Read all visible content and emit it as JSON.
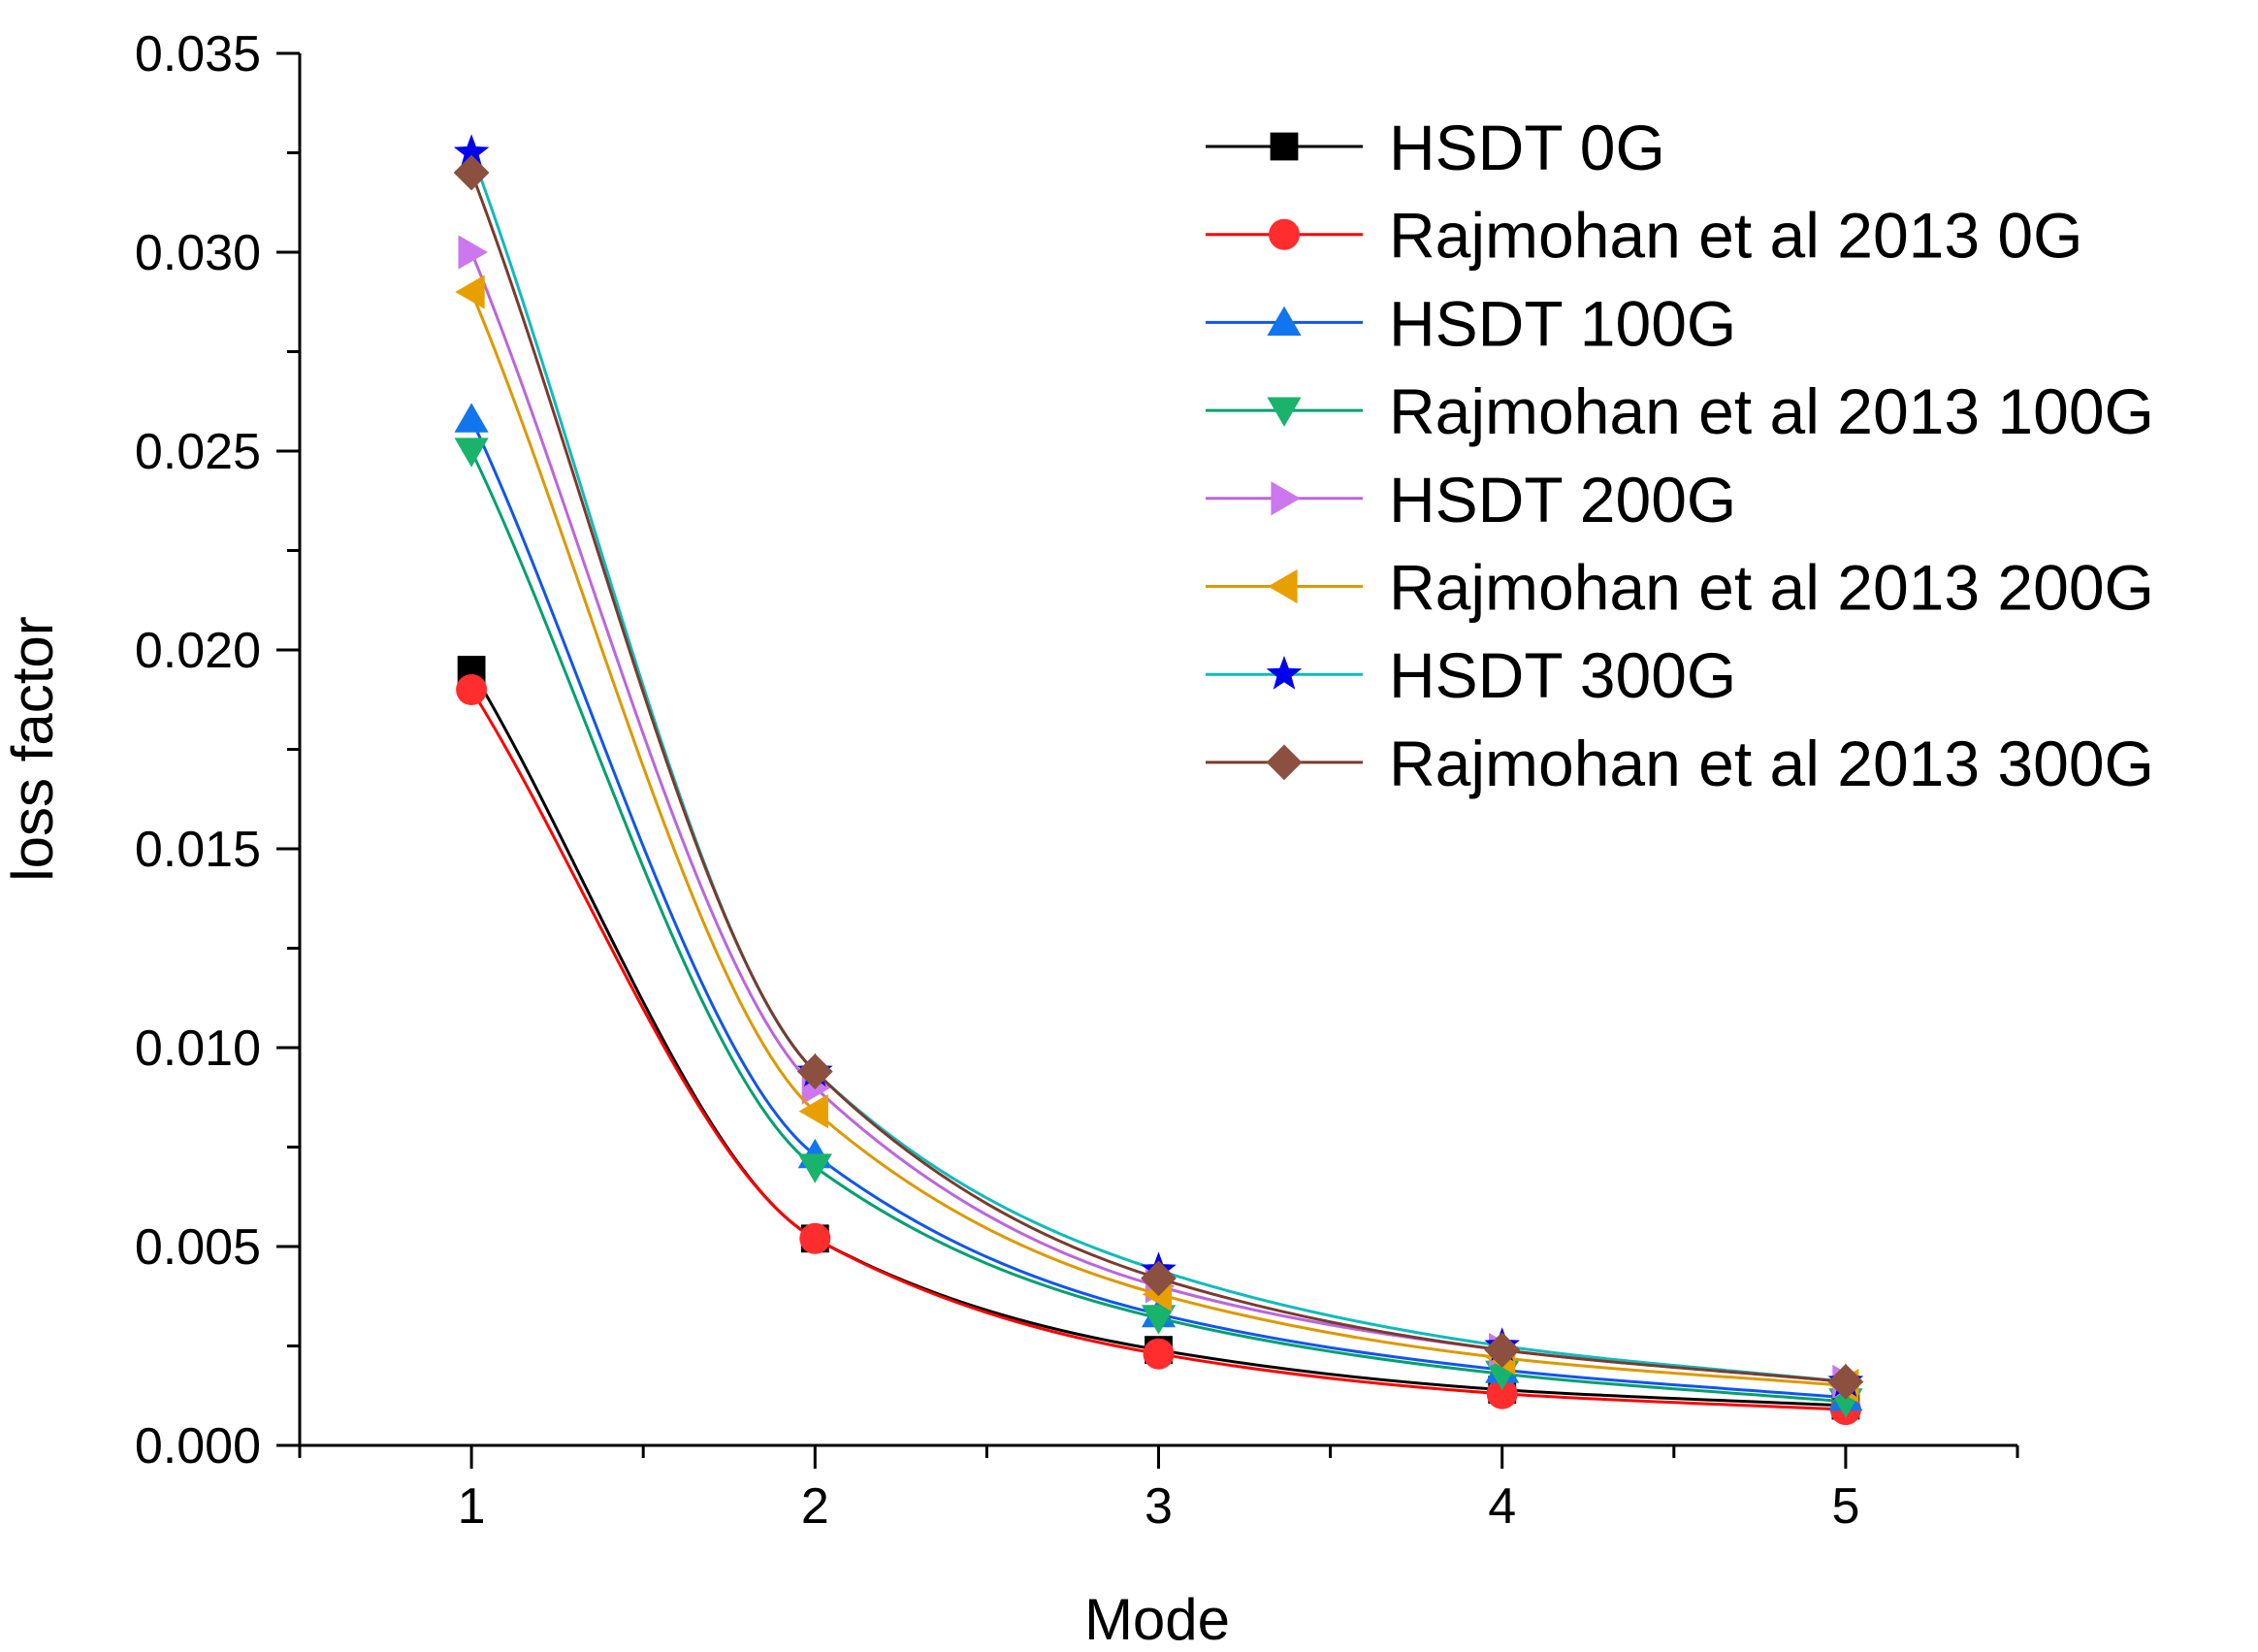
{
  "chart_data": {
    "type": "line",
    "title": "",
    "xlabel": "Mode",
    "ylabel": "loss factor",
    "x": [
      1,
      2,
      3,
      4,
      5
    ],
    "xlim": [
      0.5,
      5.5
    ],
    "ylim": [
      0.0,
      0.035
    ],
    "x_ticks": [
      1,
      2,
      3,
      4,
      5
    ],
    "x_tick_labels": [
      "1",
      "2",
      "3",
      "4",
      "5"
    ],
    "y_ticks": [
      0.0,
      0.005,
      0.01,
      0.015,
      0.02,
      0.025,
      0.03,
      0.035
    ],
    "y_tick_labels": [
      "0.000",
      "0.005",
      "0.010",
      "0.015",
      "0.020",
      "0.025",
      "0.030",
      "0.035"
    ],
    "grid": false,
    "legend_position": "top-right",
    "series": [
      {
        "name": "HSDT 0G",
        "marker": "square",
        "line_color": "#000000",
        "marker_color": "#000000",
        "values": [
          0.0195,
          0.0052,
          0.0024,
          0.0014,
          0.001
        ]
      },
      {
        "name": "Rajmohan et al 2013 0G",
        "marker": "circle",
        "line_color": "#ff0000",
        "marker_color": "#ff2d2d",
        "values": [
          0.019,
          0.0052,
          0.0023,
          0.0013,
          0.0009
        ]
      },
      {
        "name": "HSDT 100G",
        "marker": "triangle-up",
        "line_color": "#1155ee",
        "marker_color": "#1176ee",
        "values": [
          0.0258,
          0.0073,
          0.0033,
          0.0019,
          0.0012
        ]
      },
      {
        "name": "Rajmohan et al 2013 100G",
        "marker": "triangle-down",
        "line_color": "#00a070",
        "marker_color": "#19b36b",
        "values": [
          0.025,
          0.007,
          0.0032,
          0.0018,
          0.0011
        ]
      },
      {
        "name": "HSDT 200G",
        "marker": "triangle-right",
        "line_color": "#bb66dd",
        "marker_color": "#cc77ee",
        "values": [
          0.03,
          0.009,
          0.004,
          0.0024,
          0.0016
        ]
      },
      {
        "name": "Rajmohan et al 2013 200G",
        "marker": "triangle-left",
        "line_color": "#dd9900",
        "marker_color": "#e8a000",
        "values": [
          0.029,
          0.0084,
          0.0038,
          0.0022,
          0.0015
        ]
      },
      {
        "name": "HSDT 300G",
        "marker": "star",
        "line_color": "#11bbbb",
        "marker_color": "#0000ee",
        "values": [
          0.0325,
          0.0094,
          0.0044,
          0.0025,
          0.0016
        ]
      },
      {
        "name": "Rajmohan et al 2013 300G",
        "marker": "diamond",
        "line_color": "#7a3b2e",
        "marker_color": "#8b5040",
        "values": [
          0.032,
          0.0094,
          0.0042,
          0.0024,
          0.0016
        ]
      }
    ]
  }
}
